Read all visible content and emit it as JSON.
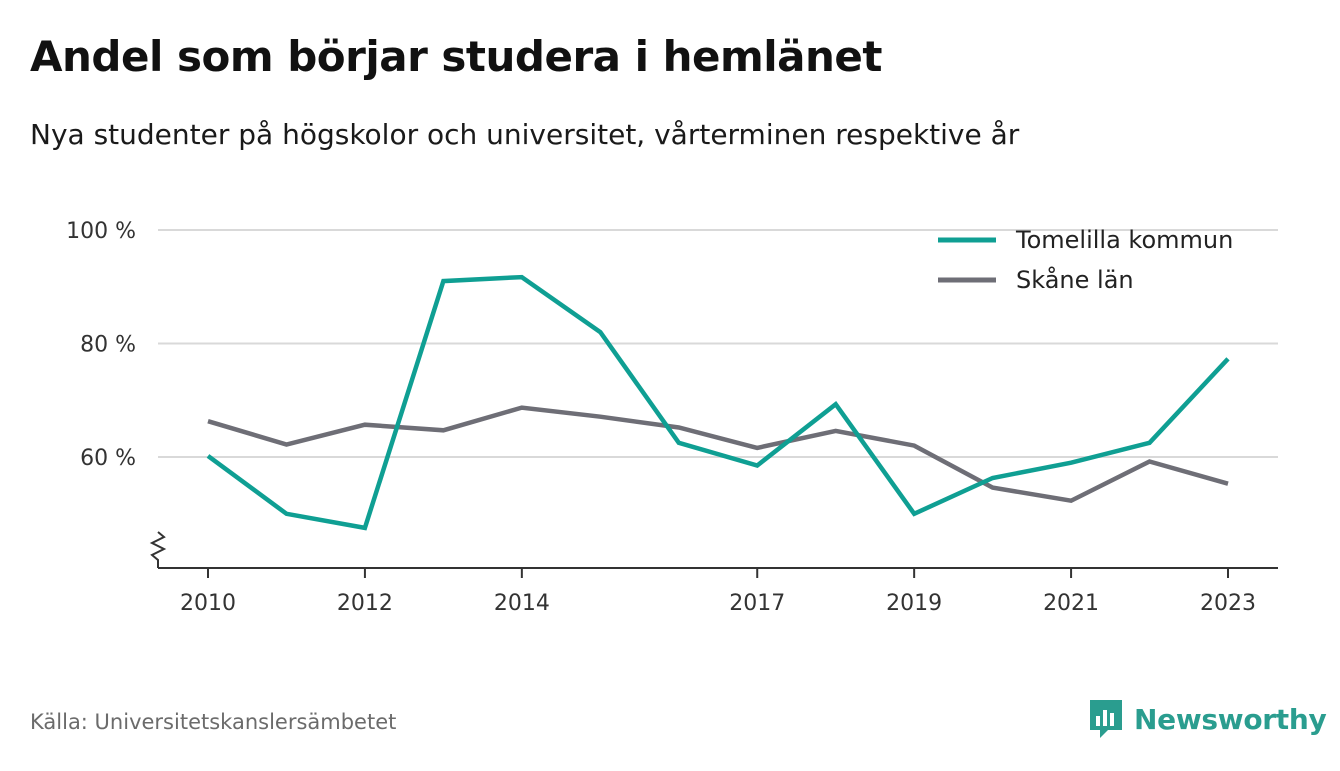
{
  "header": {
    "title": "Andel som börjar studera i hemlänet",
    "subtitle": "Nya studenter på högskolor och universitet, vårterminen respektive år"
  },
  "footer": {
    "source": "Källa: Universitetskanslersämbetet",
    "brand": "Newsworthy"
  },
  "colors": {
    "accent": "#0f9f93",
    "secondary": "#6e6e76",
    "grid": "#d9d9d9",
    "brand": "#2a9d8f"
  },
  "chart_data": {
    "type": "line",
    "x": [
      2010,
      2011,
      2012,
      2013,
      2014,
      2015,
      2016,
      2017,
      2018,
      2019,
      2020,
      2021,
      2022,
      2023
    ],
    "x_tick_labels": [
      "2010",
      "2012",
      "2014",
      "2017",
      "2019",
      "2021",
      "2023"
    ],
    "y_tick_labels": [
      "100 %",
      "80 %",
      "60 %"
    ],
    "y_ticks": [
      100,
      80,
      60
    ],
    "ylim": [
      40,
      100
    ],
    "axis_break": true,
    "grid": true,
    "legend_position": "top-right",
    "series": [
      {
        "name": "Tomelilla kommun",
        "color": "#0f9f93",
        "values": [
          60.2,
          50.0,
          47.5,
          91.0,
          91.7,
          82.0,
          62.5,
          58.5,
          69.3,
          50.0,
          56.3,
          59.0,
          62.5,
          77.3
        ]
      },
      {
        "name": "Skåne län",
        "color": "#6e6e76",
        "values": [
          66.3,
          62.2,
          65.7,
          64.7,
          68.7,
          67.1,
          65.2,
          61.6,
          64.6,
          62.0,
          54.6,
          52.3,
          59.2,
          55.3
        ]
      }
    ]
  }
}
